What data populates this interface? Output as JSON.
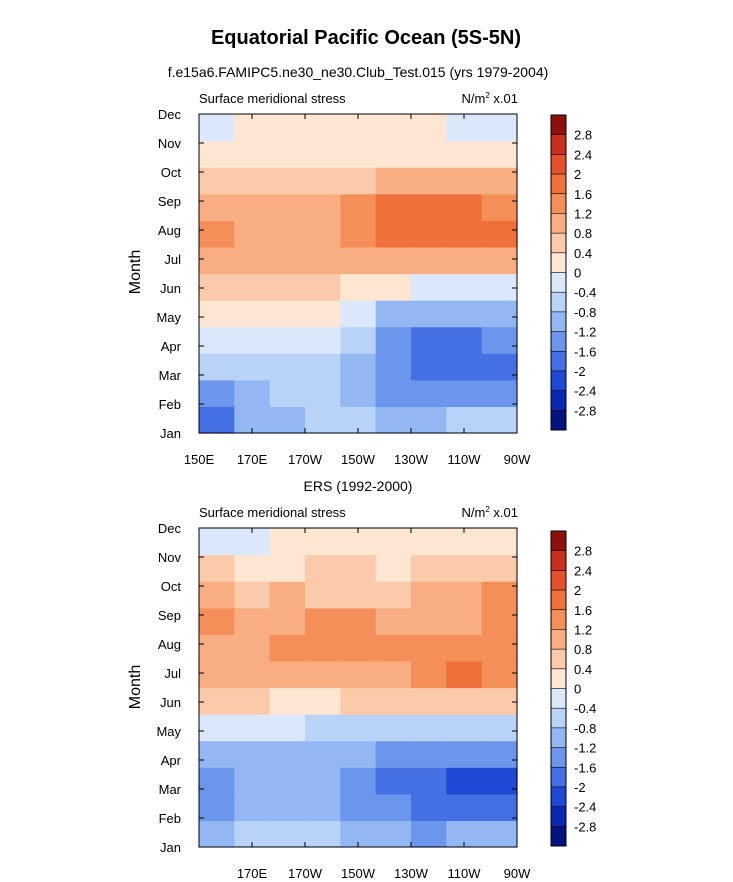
{
  "figure": {
    "title": "Equatorial Pacific Ocean (5S-5N)"
  },
  "colorbar": {
    "labels": [
      "2.8",
      "2.4",
      "2",
      "1.6",
      "1.2",
      "0.8",
      "0.4",
      "0",
      "-0.4",
      "-0.8",
      "-1.2",
      "-1.6",
      "-2",
      "-2.4",
      "-2.8"
    ],
    "colors": [
      "#8f0e0e",
      "#c72f1e",
      "#e44f2e",
      "#f0703c",
      "#f58f5a",
      "#f8ad83",
      "#fbcaaa",
      "#fde6d2",
      "#dbe8fb",
      "#b8d2f8",
      "#93b7f2",
      "#6c96ec",
      "#4570e3",
      "#1f49d4",
      "#0a28b2",
      "#06137e"
    ]
  },
  "chart_data": [
    {
      "type": "heatmap",
      "title": "f.e15a6.FAMIPC5.ne30_ne30.Club_Test.015 (yrs 1979-2004)",
      "left_label": "Surface meridional stress",
      "right_label_main": "N/m",
      "right_label_sup": "2",
      "right_label_tail": " x.01",
      "xlabel": "",
      "ylabel": "Month",
      "x_ticklabels": [
        "150E",
        "170E",
        "170W",
        "150W",
        "130W",
        "110W",
        "90W"
      ],
      "y_ticklabels": [
        "Jan",
        "Feb",
        "Mar",
        "Apr",
        "May",
        "Jun",
        "Jul",
        "Aug",
        "Sep",
        "Oct",
        "Nov",
        "Dec"
      ],
      "xlim": [
        "150E",
        "90W"
      ],
      "levels": [
        -2.8,
        -2.4,
        -2,
        -1.6,
        -1.2,
        -0.8,
        -0.4,
        0,
        0.4,
        0.8,
        1.2,
        1.6,
        2,
        2.4,
        2.8
      ],
      "grid_lon_deg": [
        150,
        165,
        180,
        195,
        210,
        225,
        240,
        255,
        270
      ],
      "values": [
        [
          -1.7,
          -1.1,
          -0.9,
          -0.7,
          -0.8,
          -1.0,
          -0.9,
          -0.8,
          -0.6
        ],
        [
          -1.4,
          -1.0,
          -0.8,
          -0.7,
          -0.9,
          -1.4,
          -1.6,
          -1.5,
          -1.3
        ],
        [
          -0.8,
          -0.7,
          -0.6,
          -0.6,
          -1.0,
          -1.6,
          -2.0,
          -2.0,
          -1.8
        ],
        [
          -0.3,
          -0.3,
          -0.3,
          -0.4,
          -0.8,
          -1.5,
          -1.9,
          -1.9,
          -1.6
        ],
        [
          0.2,
          0.2,
          0.2,
          0.0,
          -0.4,
          -0.9,
          -1.1,
          -1.1,
          -0.9
        ],
        [
          0.5,
          0.4,
          0.4,
          0.4,
          0.3,
          0.0,
          -0.2,
          -0.2,
          -0.2
        ],
        [
          1.1,
          0.9,
          0.8,
          0.8,
          0.9,
          1.0,
          1.0,
          1.0,
          1.0
        ],
        [
          1.3,
          0.9,
          0.9,
          1.0,
          1.3,
          1.6,
          1.7,
          1.7,
          1.6
        ],
        [
          1.1,
          0.9,
          0.8,
          0.9,
          1.2,
          1.6,
          1.7,
          1.7,
          1.5
        ],
        [
          0.7,
          0.6,
          0.6,
          0.6,
          0.7,
          0.8,
          0.8,
          0.8,
          0.8
        ],
        [
          0.3,
          0.3,
          0.3,
          0.3,
          0.3,
          0.3,
          0.3,
          0.2,
          0.2
        ],
        [
          -0.1,
          0.0,
          0.1,
          0.1,
          0.1,
          0.0,
          0.0,
          -0.1,
          -0.1
        ]
      ]
    },
    {
      "type": "heatmap",
      "title": "ERS (1992-2000)",
      "left_label": "Surface meridional stress",
      "right_label_main": "N/m",
      "right_label_sup": "2",
      "right_label_tail": " x.01",
      "xlabel": "",
      "ylabel": "Month",
      "x_ticklabels": [
        "170E",
        "170W",
        "150W",
        "130W",
        "110W",
        "90W"
      ],
      "y_ticklabels": [
        "Jan",
        "Feb",
        "Mar",
        "Apr",
        "May",
        "Jun",
        "Jul",
        "Aug",
        "Sep",
        "Oct",
        "Nov",
        "Dec"
      ],
      "xlim": [
        "150E",
        "90W"
      ],
      "levels": [
        -2.8,
        -2.4,
        -2,
        -1.6,
        -1.2,
        -0.8,
        -0.4,
        0,
        0.4,
        0.8,
        1.2,
        1.6,
        2,
        2.4,
        2.8
      ],
      "grid_lon_deg": [
        150,
        165,
        180,
        195,
        210,
        225,
        240,
        255,
        270
      ],
      "values": [
        [
          -1.1,
          -0.8,
          -0.6,
          -0.7,
          -0.9,
          -1.1,
          -1.3,
          -1.2,
          -1.2
        ],
        [
          -1.4,
          -1.1,
          -0.9,
          -1.0,
          -1.3,
          -1.5,
          -1.8,
          -1.9,
          -2.0
        ],
        [
          -1.5,
          -1.2,
          -1.1,
          -1.2,
          -1.6,
          -1.8,
          -2.0,
          -2.1,
          -2.4
        ],
        [
          -0.9,
          -0.9,
          -1.0,
          -1.1,
          -1.2,
          -1.3,
          -1.4,
          -1.4,
          -1.3
        ],
        [
          -0.2,
          -0.3,
          -0.4,
          -0.5,
          -0.5,
          -0.5,
          -0.6,
          -0.6,
          -0.5
        ],
        [
          0.5,
          0.4,
          0.3,
          0.3,
          0.4,
          0.4,
          0.5,
          0.6,
          0.6
        ],
        [
          0.9,
          0.9,
          0.9,
          1.0,
          1.0,
          1.0,
          1.4,
          1.6,
          1.5
        ],
        [
          1.1,
          1.0,
          1.3,
          1.2,
          1.3,
          1.2,
          1.2,
          1.5,
          1.5
        ],
        [
          1.3,
          1.0,
          1.1,
          1.2,
          1.2,
          1.1,
          1.1,
          1.1,
          1.5
        ],
        [
          0.8,
          0.7,
          0.8,
          0.7,
          0.7,
          0.6,
          0.8,
          0.9,
          1.2
        ],
        [
          0.4,
          0.2,
          0.3,
          0.4,
          0.4,
          0.3,
          0.5,
          0.6,
          0.5
        ],
        [
          -0.2,
          -0.1,
          0.0,
          0.1,
          0.1,
          0.1,
          0.2,
          0.2,
          0.1
        ]
      ]
    }
  ]
}
